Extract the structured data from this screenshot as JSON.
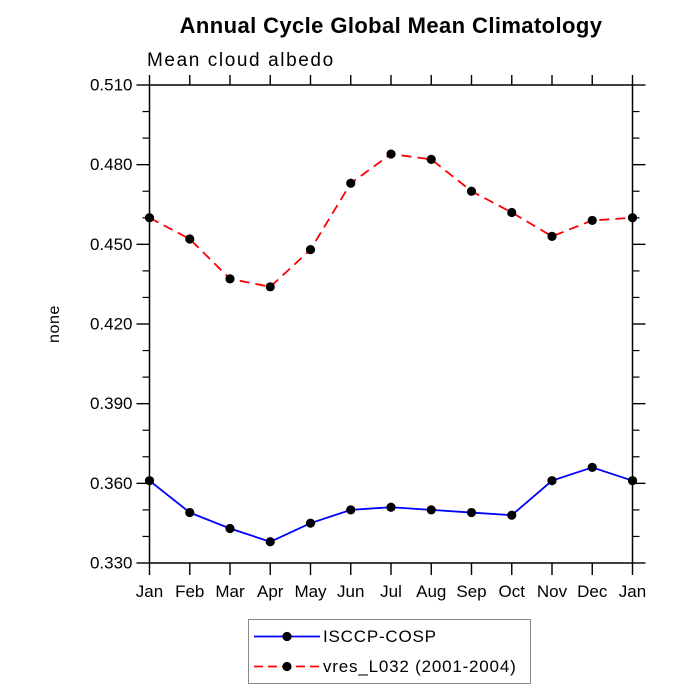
{
  "title": "Annual Cycle Global Mean Climatology",
  "subtitle": "Mean cloud albedo",
  "ylabel": "none",
  "colors": {
    "series1": "#0000ff",
    "series2": "#ff0000",
    "marker": "#000000",
    "axis": "#000000",
    "legend_border": "#8a8a8a"
  },
  "chart_data": {
    "type": "line",
    "title": "Annual Cycle Global Mean Climatology",
    "subtitle": "Mean cloud albedo",
    "ylabel": "none",
    "x_categories": [
      "Jan",
      "Feb",
      "Mar",
      "Apr",
      "May",
      "Jun",
      "Jul",
      "Aug",
      "Sep",
      "Oct",
      "Nov",
      "Dec",
      "Jan"
    ],
    "yticks": [
      "0.330",
      "0.360",
      "0.390",
      "0.420",
      "0.450",
      "0.480",
      "0.510"
    ],
    "ylim": [
      0.33,
      0.51
    ],
    "ytick_step": 0.03,
    "yminor_step": 0.01,
    "grid": false,
    "legend_position": "bottom-center",
    "series": [
      {
        "name": "ISCCP-COSP",
        "color": "#0000ff",
        "line_style": "solid",
        "marker": "filled-circle",
        "marker_color": "#000000",
        "values": [
          0.361,
          0.349,
          0.343,
          0.338,
          0.345,
          0.35,
          0.351,
          0.35,
          0.349,
          0.348,
          0.361,
          0.366,
          0.361
        ]
      },
      {
        "name": "vres_L032 (2001-2004)",
        "color": "#ff0000",
        "line_style": "dashed",
        "marker": "filled-circle",
        "marker_color": "#000000",
        "values": [
          0.46,
          0.452,
          0.437,
          0.434,
          0.448,
          0.473,
          0.484,
          0.482,
          0.47,
          0.462,
          0.453,
          0.459,
          0.46
        ]
      }
    ]
  }
}
